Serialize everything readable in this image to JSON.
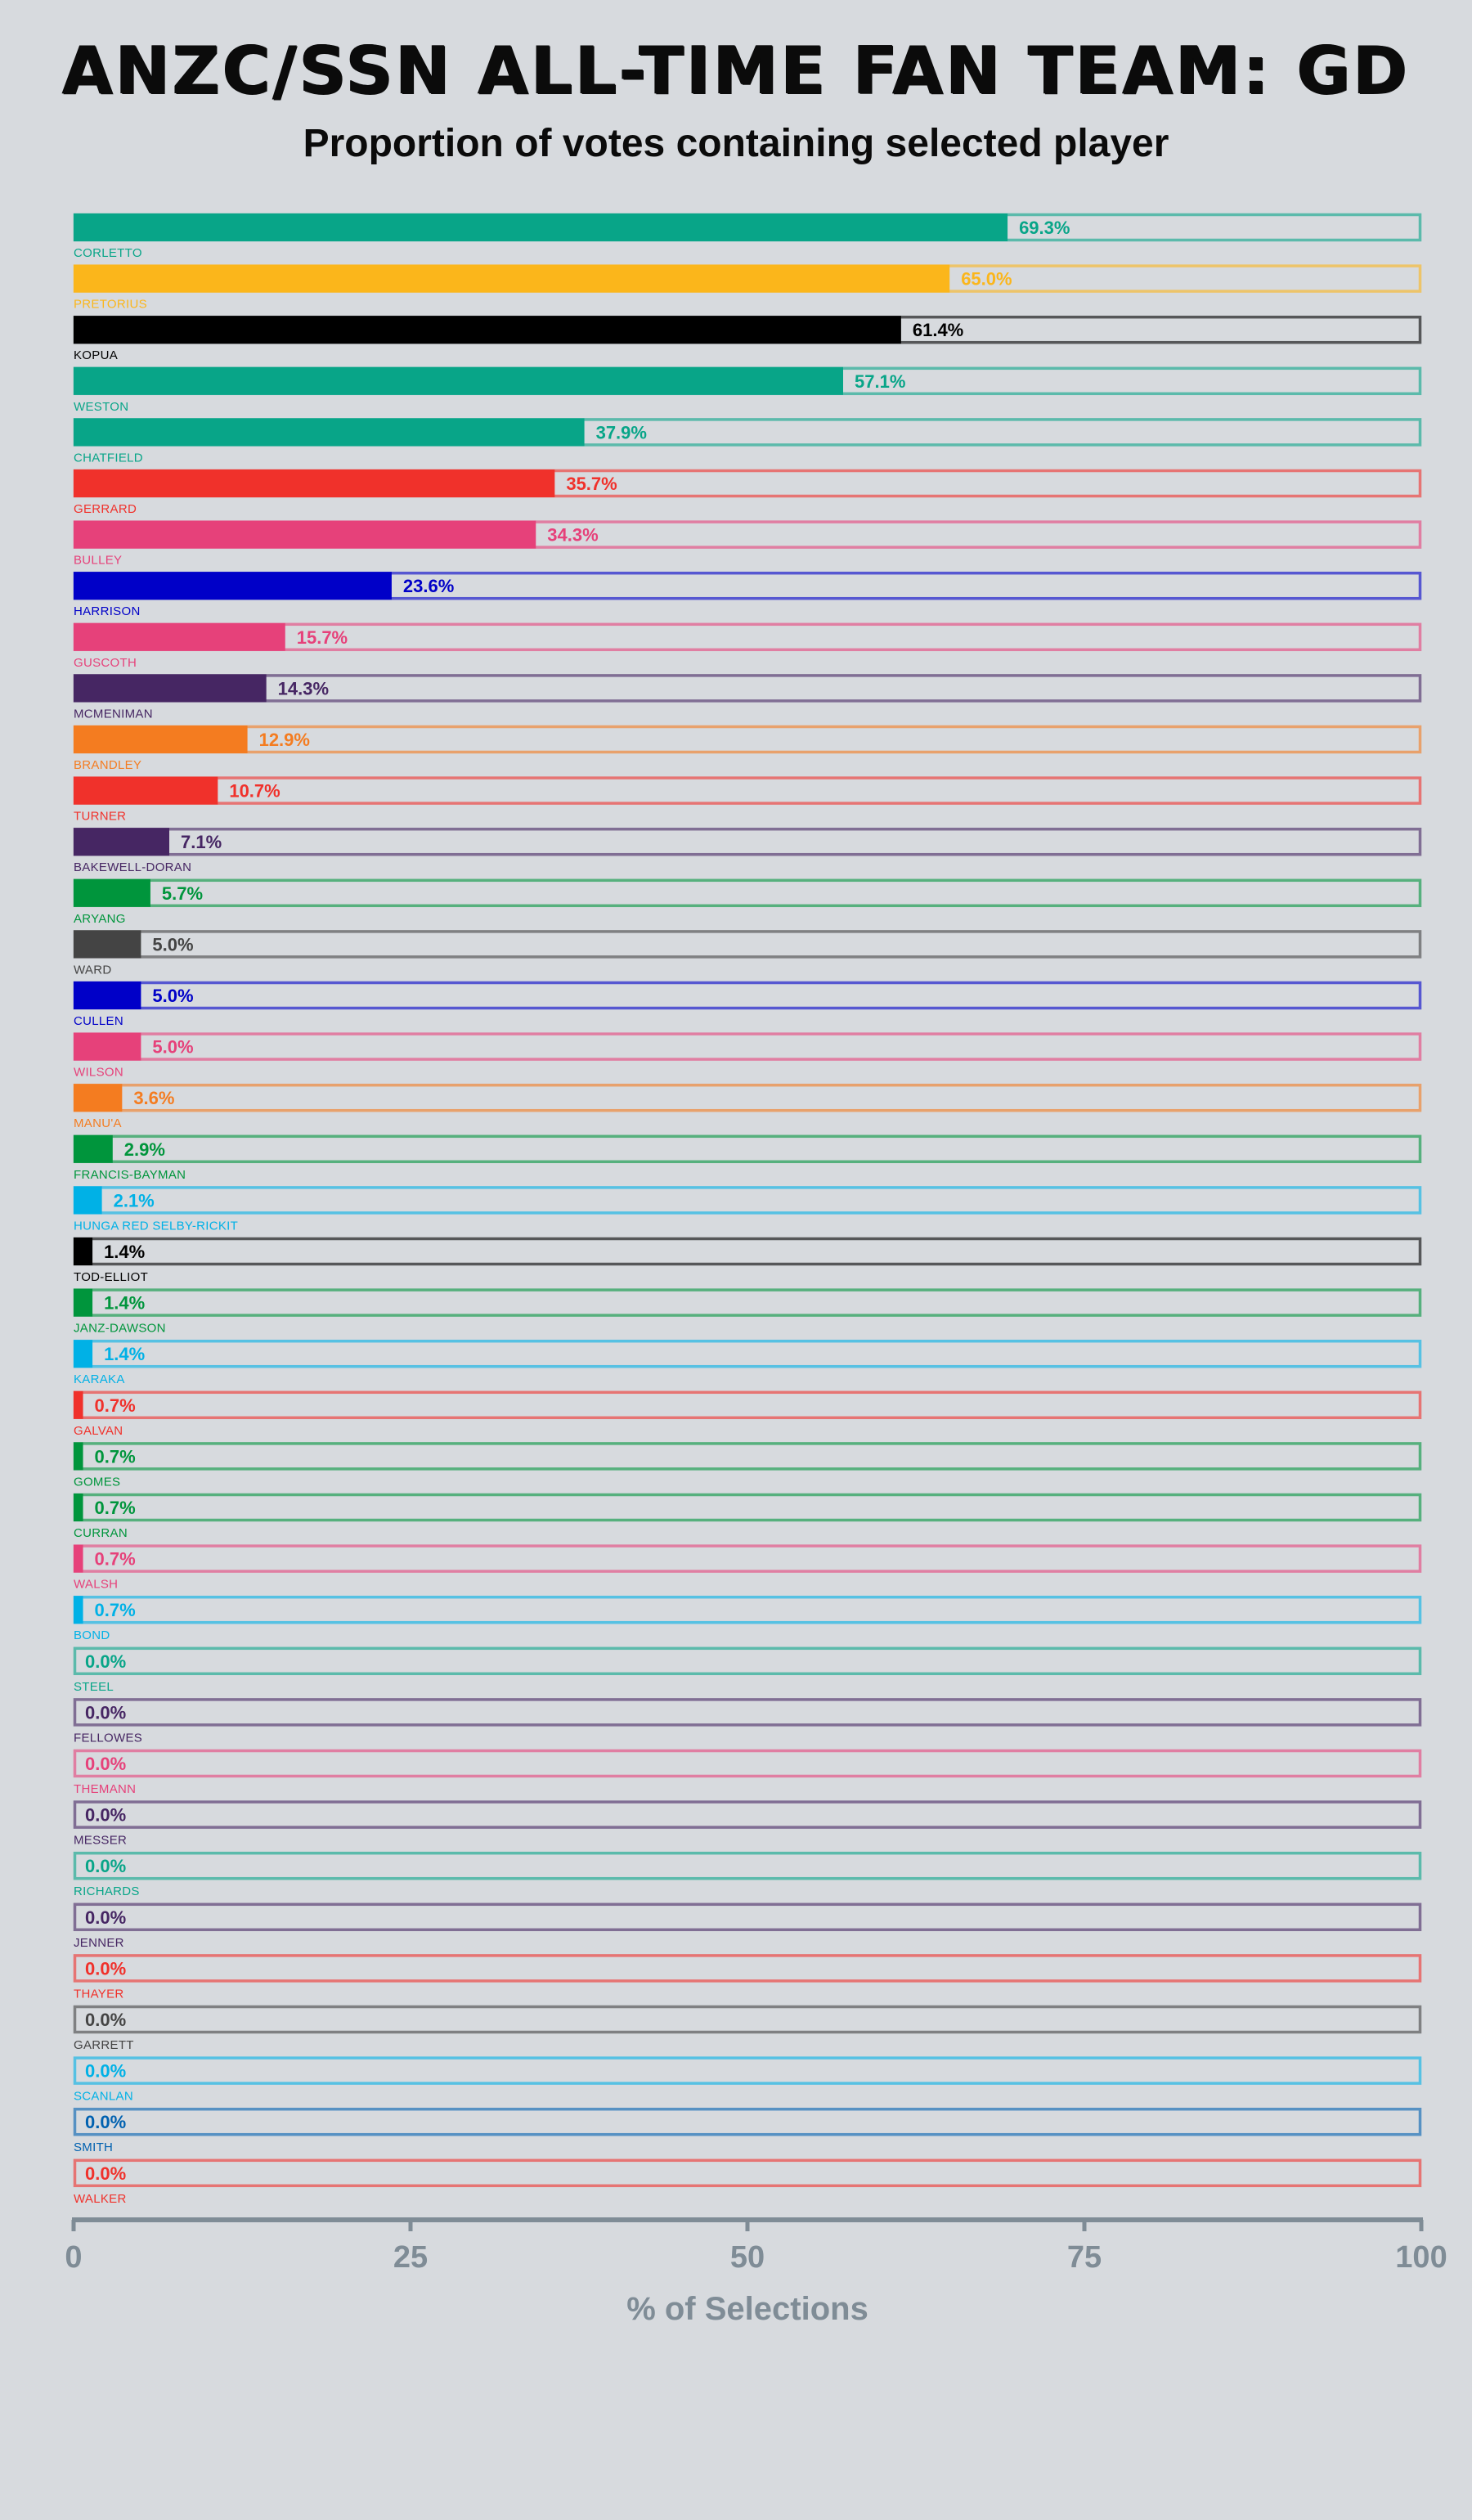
{
  "chart_data": {
    "type": "bar",
    "orientation": "horizontal",
    "title": "ANZC/SSN ALL-TIME FAN TEAM: GD",
    "subtitle": "Proportion of votes containing selected player",
    "xlabel": "% of Selections",
    "ylabel": "",
    "xlim": [
      0,
      100
    ],
    "xticks": [
      0,
      25,
      50,
      75,
      100
    ],
    "grid": false,
    "legend": "none",
    "value_suffix": "%",
    "bars": [
      {
        "name": "CORLETTO",
        "value": 69.3,
        "label": "69.3%",
        "color": "#08a588"
      },
      {
        "name": "PRETORIUS",
        "value": 65.0,
        "label": "65.0%",
        "color": "#fbb61b"
      },
      {
        "name": "KOPUA",
        "value": 61.4,
        "label": "61.4%",
        "color": "#000000"
      },
      {
        "name": "WESTON",
        "value": 57.1,
        "label": "57.1%",
        "color": "#08a588"
      },
      {
        "name": "CHATFIELD",
        "value": 37.9,
        "label": "37.9%",
        "color": "#08a588"
      },
      {
        "name": "GERRARD",
        "value": 35.7,
        "label": "35.7%",
        "color": "#f0312b"
      },
      {
        "name": "BULLEY",
        "value": 34.3,
        "label": "34.3%",
        "color": "#e6417a"
      },
      {
        "name": "HARRISON",
        "value": 23.6,
        "label": "23.6%",
        "color": "#0000c8"
      },
      {
        "name": "GUSCOTH",
        "value": 15.7,
        "label": "15.7%",
        "color": "#e6417a"
      },
      {
        "name": "MCMENIMAN",
        "value": 14.3,
        "label": "14.3%",
        "color": "#462663"
      },
      {
        "name": "BRANDLEY",
        "value": 12.9,
        "label": "12.9%",
        "color": "#f47c20"
      },
      {
        "name": "TURNER",
        "value": 10.7,
        "label": "10.7%",
        "color": "#f0312b"
      },
      {
        "name": "BAKEWELL-DORAN",
        "value": 7.1,
        "label": "7.1%",
        "color": "#462663"
      },
      {
        "name": "ARYANG",
        "value": 5.7,
        "label": "5.7%",
        "color": "#00953c"
      },
      {
        "name": "WARD",
        "value": 5.0,
        "label": "5.0%",
        "color": "#444444"
      },
      {
        "name": "CULLEN",
        "value": 5.0,
        "label": "5.0%",
        "color": "#0000c8"
      },
      {
        "name": "WILSON",
        "value": 5.0,
        "label": "5.0%",
        "color": "#e6417a"
      },
      {
        "name": "MANU'A",
        "value": 3.6,
        "label": "3.6%",
        "color": "#f47c20"
      },
      {
        "name": "FRANCIS-BAYMAN",
        "value": 2.9,
        "label": "2.9%",
        "color": "#00953c"
      },
      {
        "name": "HUNGA RED SELBY-RICKIT",
        "value": 2.1,
        "label": "2.1%",
        "color": "#00b1e6"
      },
      {
        "name": "TOD-ELLIOT",
        "value": 1.4,
        "label": "1.4%",
        "color": "#000000"
      },
      {
        "name": "JANZ-DAWSON",
        "value": 1.4,
        "label": "1.4%",
        "color": "#00953c"
      },
      {
        "name": "KARAKA",
        "value": 1.4,
        "label": "1.4%",
        "color": "#00b1e6"
      },
      {
        "name": "GALVAN",
        "value": 0.7,
        "label": "0.7%",
        "color": "#f0312b"
      },
      {
        "name": "GOMES",
        "value": 0.7,
        "label": "0.7%",
        "color": "#00953c"
      },
      {
        "name": "CURRAN",
        "value": 0.7,
        "label": "0.7%",
        "color": "#00953c"
      },
      {
        "name": "WALSH",
        "value": 0.7,
        "label": "0.7%",
        "color": "#e6417a"
      },
      {
        "name": "BOND",
        "value": 0.7,
        "label": "0.7%",
        "color": "#00b1e6"
      },
      {
        "name": "STEEL",
        "value": 0.0,
        "label": "0.0%",
        "color": "#08a588"
      },
      {
        "name": "FELLOWES",
        "value": 0.0,
        "label": "0.0%",
        "color": "#462663"
      },
      {
        "name": "THEMANN",
        "value": 0.0,
        "label": "0.0%",
        "color": "#e6417a"
      },
      {
        "name": "MESSER",
        "value": 0.0,
        "label": "0.0%",
        "color": "#462663"
      },
      {
        "name": "RICHARDS",
        "value": 0.0,
        "label": "0.0%",
        "color": "#08a588"
      },
      {
        "name": "JENNER",
        "value": 0.0,
        "label": "0.0%",
        "color": "#462663"
      },
      {
        "name": "THAYER",
        "value": 0.0,
        "label": "0.0%",
        "color": "#f0312b"
      },
      {
        "name": "GARRETT",
        "value": 0.0,
        "label": "0.0%",
        "color": "#444444"
      },
      {
        "name": "SCANLAN",
        "value": 0.0,
        "label": "0.0%",
        "color": "#00b1e6"
      },
      {
        "name": "SMITH",
        "value": 0.0,
        "label": "0.0%",
        "color": "#0061b0"
      },
      {
        "name": "WALKER",
        "value": 0.0,
        "label": "0.0%",
        "color": "#f0312b"
      }
    ]
  }
}
